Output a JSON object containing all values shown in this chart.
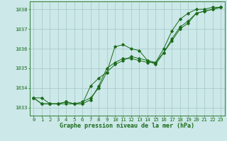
{
  "title": "Graphe pression niveau de la mer (hPa)",
  "background_color": "#cce8e8",
  "grid_color": "#aacccc",
  "line_color": "#1a6b1a",
  "x_ticks": [
    0,
    1,
    2,
    3,
    4,
    5,
    6,
    7,
    8,
    9,
    10,
    11,
    12,
    13,
    14,
    15,
    16,
    17,
    18,
    19,
    20,
    21,
    22,
    23
  ],
  "ylim": [
    1032.6,
    1038.4
  ],
  "yticks": [
    1033,
    1034,
    1035,
    1036,
    1037,
    1038
  ],
  "series": [
    [
      1033.5,
      1033.5,
      1033.2,
      1033.2,
      1033.3,
      1033.2,
      1033.2,
      1034.1,
      1034.5,
      1034.8,
      1036.1,
      1036.2,
      1036.0,
      1035.9,
      1035.4,
      1035.3,
      1036.0,
      1036.9,
      1037.5,
      1037.8,
      1038.0,
      1038.0,
      1038.1,
      1038.1
    ],
    [
      1033.5,
      1033.2,
      1033.2,
      1033.2,
      1033.3,
      1033.2,
      1033.2,
      1033.4,
      1034.1,
      1035.0,
      1035.3,
      1035.5,
      1035.5,
      1035.4,
      1035.3,
      1035.3,
      1035.8,
      1036.5,
      1037.1,
      1037.4,
      1037.8,
      1037.9,
      1038.0,
      1038.1
    ],
    [
      1033.5,
      1033.2,
      1033.2,
      1033.2,
      1033.2,
      1033.2,
      1033.3,
      1033.5,
      1034.0,
      1034.8,
      1035.2,
      1035.4,
      1035.6,
      1035.5,
      1035.4,
      1035.2,
      1035.8,
      1036.4,
      1037.0,
      1037.3,
      1037.8,
      1037.9,
      1038.0,
      1038.1
    ]
  ],
  "title_fontsize": 6.0,
  "tick_fontsize": 5.2
}
